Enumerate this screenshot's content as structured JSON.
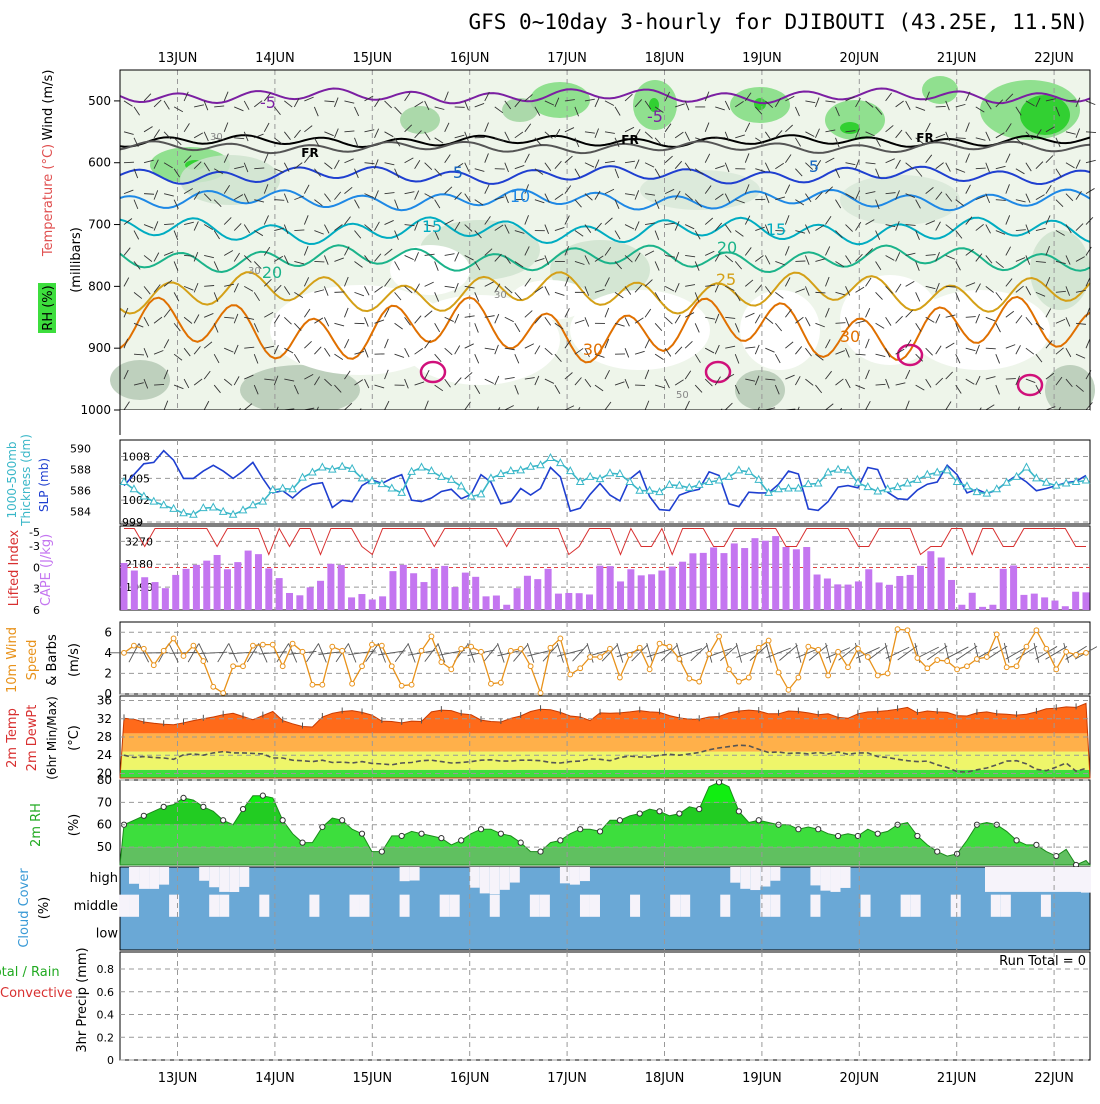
{
  "title": "GFS 0~10day 3-hourly for DJIBOUTI (43.25E, 11.5N)",
  "dates": [
    "13JUN",
    "14JUN",
    "15JUN",
    "16JUN",
    "17JUN",
    "18JUN",
    "19JUN",
    "20JUN",
    "21JUN",
    "22JUN"
  ],
  "chart_data": [
    {
      "type": "heatmap",
      "name": "upper-air",
      "ylabel_parts": [
        "Wind (m/s)",
        "Temperature (°C)",
        "RH (%)",
        "(millibars)"
      ],
      "yticks": [
        500,
        600,
        700,
        800,
        900,
        1000
      ],
      "ylim": [
        1000,
        450
      ],
      "colors": {
        "wind": "#000000",
        "temperature": "#e05050",
        "rh": "#22cc22"
      },
      "isotherm_labels": [
        {
          "text": "-5",
          "color": "#7b1fa2"
        },
        {
          "text": "-5",
          "color": "#7b1fa2"
        },
        {
          "text": "FR",
          "color": "#000000"
        },
        {
          "text": "FR",
          "color": "#000000"
        },
        {
          "text": "FR",
          "color": "#000000"
        },
        {
          "text": "5",
          "color": "#1565c0"
        },
        {
          "text": "5",
          "color": "#1565c0"
        },
        {
          "text": "10",
          "color": "#1e88e5"
        },
        {
          "text": "15",
          "color": "#00acc1"
        },
        {
          "text": "15",
          "color": "#00acc1"
        },
        {
          "text": "20",
          "color": "#1bb38a"
        },
        {
          "text": "20",
          "color": "#1bb38a"
        },
        {
          "text": "25",
          "color": "#d4a017"
        },
        {
          "text": "30",
          "color": "#e07000"
        },
        {
          "text": "30",
          "color": "#e07000"
        }
      ],
      "rh_labels": [
        "30",
        "30",
        "30",
        "50"
      ]
    },
    {
      "type": "line",
      "name": "slp-thickness",
      "ylabel_left": [
        "1000-500mb",
        "Thickness (dm)"
      ],
      "ylabel_right": "SLP (mb)",
      "yticks_left": [
        584,
        586,
        588,
        590
      ],
      "yticks_right": [
        999,
        1002,
        1005,
        1008
      ],
      "ylim_right": [
        999,
        1010
      ],
      "series": [
        {
          "name": "SLP (mb)",
          "color": "#1f3fd0",
          "values": [
            1004,
            1005.5,
            1007,
            1007.2,
            1008.8,
            1007.5,
            1005,
            1005,
            1006,
            1006.8,
            1006,
            1005,
            1006,
            1007.2,
            1005,
            1003,
            1003.3,
            1002.3,
            1003.5,
            1004.2,
            1004.4,
            1001,
            1002,
            1001.8,
            1004,
            1004.8,
            1004.3,
            1005,
            1005.5,
            1002,
            1001.8,
            1002.3,
            1003.2,
            1003.5,
            1002.2,
            1002.8,
            1005.5,
            1004.5,
            1001.5,
            1001.8,
            1003.6,
            1002.7,
            1003.6,
            1006.5,
            1005.2,
            1000.5,
            1000.9,
            1002.8,
            1004.3,
            1002.7,
            1001.9,
            1004.9,
            1006,
            1002.5,
            1000.7,
            1000.6,
            1002.7,
            1003.2,
            1003.5,
            1005.9,
            1005.4,
            1001.5,
            1001.1,
            1003.1,
            1003,
            1003,
            1004.2,
            1006,
            1005.6,
            1000.8,
            1000.6,
            1001.8,
            1003.8,
            1004,
            1003.7,
            1006.5,
            1006.2,
            1003.1,
            1002.2,
            1002.1,
            1003.4,
            1004.2,
            1004.5,
            1006.8,
            1005.5,
            1003,
            1003.5,
            1002.9,
            1003.4,
            1004.5,
            1005.4,
            1004.5,
            1003.3,
            1003.6,
            1004,
            1004.4,
            1004.6,
            1005.4
          ]
        },
        {
          "name": "1000-500mb Thickness (dm)",
          "color": "#3ab7c8",
          "marker": "triangle",
          "values": [
            1004.5,
            1003.5,
            1002.5,
            1001.8,
            1001.3,
            1000.8,
            1000.2,
            1000,
            1000.9,
            1001,
            1000.4,
            1000,
            1000.6,
            1001.3,
            1001.8,
            1003.4,
            1003.6,
            1003.5,
            1005.1,
            1005.8,
            1006.5,
            1006.2,
            1006.6,
            1006.3,
            1005,
            1004.6,
            1004.2,
            1003.6,
            1003,
            1005.9,
            1006.5,
            1006,
            1005.2,
            1004.8,
            1003.9,
            1002.5,
            1002.8,
            1005,
            1005.6,
            1006,
            1006.1,
            1006.6,
            1006.8,
            1007.8,
            1007.1,
            1006,
            1004.5,
            1005.2,
            1004.9,
            1005.7,
            1005.6,
            1004.5,
            1003.3,
            1003.3,
            1003.1,
            1004.1,
            1004,
            1003.7,
            1004.1,
            1004.5,
            1004.7,
            1005.2,
            1006.1,
            1005.9,
            1004.8,
            1003,
            1003.5,
            1003.6,
            1003.6,
            1004.2,
            1004.3,
            1005.8,
            1006.2,
            1006.1,
            1004.4,
            1003.8,
            1003.2,
            1003.5,
            1003.8,
            1004.3,
            1004.8,
            1005.5,
            1005.8,
            1006.1,
            1004.5,
            1003.9,
            1003.1,
            1002.9,
            1003.5,
            1004.4,
            1005.2,
            1006.5,
            1005,
            1004.4,
            1004,
            1004.3,
            1004.5,
            1004.7
          ]
        }
      ]
    },
    {
      "type": "bar",
      "name": "cape-lifted-index",
      "ylabel_left": "Lifted Index",
      "ylabel_right": "CAPE (J/kg)",
      "yticks_left": [
        6,
        3,
        0,
        -3,
        -5
      ],
      "yticks_right": [
        1090,
        2180,
        3270
      ],
      "colors": {
        "cape": "#c476f0",
        "lifted_index": "#d83030"
      },
      "series": [
        {
          "name": "CAPE (J/kg)",
          "values": [
            2240,
            1880,
            1560,
            1330,
            1040,
            1670,
            1960,
            2150,
            2350,
            2620,
            1940,
            2280,
            2830,
            2660,
            1980,
            1520,
            810,
            700,
            1080,
            1390,
            2200,
            2140,
            600,
            760,
            500,
            650,
            1850,
            2150,
            1750,
            1330,
            1970,
            2100,
            1090,
            1780,
            1580,
            650,
            690,
            250,
            1040,
            1630,
            1470,
            1960,
            780,
            810,
            800,
            740,
            2110,
            2090,
            1360,
            1940,
            1650,
            1700,
            1880,
            2070,
            2300,
            2700,
            2720,
            2980,
            2710,
            3170,
            2950,
            3420,
            3300,
            3520,
            3000,
            2890,
            3000,
            1690,
            1500,
            1220,
            1210,
            1360,
            1940,
            1310,
            1200,
            1620,
            1670,
            2100,
            2800,
            2500,
            1430,
            250,
            820,
            150,
            250,
            1960,
            2120,
            720,
            780,
            600,
            450,
            180,
            870,
            840
          ]
        },
        {
          "name": "Lifted Index",
          "values": [
            -5.5,
            -5.5,
            -5.5,
            -5.5,
            -5.5,
            -5.5,
            -5.5,
            -5.5,
            -5.5,
            -5.5,
            -5.5,
            -5.5,
            -5.5,
            -5.5,
            -5.5,
            -5.5,
            -5.5,
            -5.5,
            -5.5,
            -5.5,
            -5.5,
            -5.5,
            -5.5,
            -5.5,
            -5.5,
            -5.5,
            -5.5,
            -5.5,
            -5.5,
            -5.5,
            -5.5,
            -5.5,
            -5.5,
            -5.5,
            -5.5,
            -5.5,
            -5.5,
            -5.5,
            -5.5,
            -5.5,
            -5.5,
            -5.5,
            -5.5,
            -5.5,
            -5.5,
            -5.5,
            -5.5,
            -5.5,
            -5.5,
            -5.5,
            -5.5,
            -5.5,
            -5.5,
            -5.5,
            -5.5,
            -5.5,
            -5.5,
            -5.5,
            -5.5,
            -5.5,
            -5.5,
            -5.5,
            -5.5,
            -5.5,
            -5.5,
            -5.5,
            -5.5,
            -5.5,
            -5.5,
            -5.5,
            -5.5,
            -5.5,
            -5.5,
            -5.5,
            -5.5,
            -5.5,
            -5.5,
            -5.5,
            -5.5,
            -5.5,
            -5.5,
            -5.5,
            -5.5,
            -5.5,
            -5.5,
            -5.5,
            -5.5,
            -5.5,
            -5.5,
            -5.5,
            -5.5,
            -5.5,
            -5.5,
            -5.5
          ]
        }
      ]
    },
    {
      "type": "line",
      "name": "10m-wind",
      "ylabel": [
        "10m Wind",
        "Speed",
        "& Barbs",
        "(m/s)"
      ],
      "yticks": [
        0,
        2,
        4,
        6
      ],
      "ylim": [
        0,
        7
      ],
      "series": [
        {
          "name": "10m Wind Speed",
          "color": "#e8921a",
          "values": [
            4,
            4.7,
            4.4,
            2.8,
            4.2,
            5.4,
            3.7,
            4.7,
            3.2,
            0.7,
            0.1,
            2.7,
            2.7,
            4.7,
            4.8,
            4.8,
            2.7,
            4.9,
            4.1,
            0.9,
            0.9,
            4.6,
            4.2,
            1,
            2.7,
            4.8,
            4.7,
            2.7,
            0.8,
            0.9,
            4.2,
            5.6,
            3.1,
            2.4,
            4.4,
            4.6,
            4.1,
            1,
            1.1,
            4.2,
            4.4,
            2.7,
            0.1,
            4.5,
            5.4,
            1.9,
            2.5,
            3.6,
            3.6,
            4.4,
            1.6,
            3.8,
            4.5,
            2.4,
            4.9,
            4.6,
            3.4,
            1.5,
            1.2,
            3.9,
            5.6,
            2.4,
            1.2,
            1.6,
            4.5,
            5.2,
            2.1,
            0.4,
            1.6,
            4.6,
            4.3,
            1.8,
            4.1,
            2.6,
            4.4,
            3.6,
            1.8,
            2,
            6.3,
            6.2,
            3.5,
            2.5,
            3.3,
            3.2,
            2.4,
            2.7,
            3.4,
            3.6,
            5.8,
            2.6,
            2.7,
            4.6,
            6.2,
            4.4,
            2.4,
            4.1,
            3.8,
            4
          ]
        }
      ]
    },
    {
      "type": "area",
      "name": "2m-temp",
      "ylabel": [
        "2m Temp",
        "2m DewPt",
        "(6hr Min/Max)",
        "(°C)"
      ],
      "yticks": [
        20,
        24,
        28,
        32,
        36
      ],
      "ylim": [
        19,
        37
      ],
      "series": [
        {
          "name": "2m Temp",
          "color": "#e8561a",
          "values": [
            32.1,
            31.9,
            31.3,
            31,
            30.8,
            30.7,
            31.1,
            31.6,
            32,
            32.4,
            32.9,
            33.2,
            32.5,
            31.8,
            32.7,
            33.6,
            31.6,
            30.9,
            30.3,
            30.2,
            32.4,
            33.2,
            33.6,
            33.8,
            33.4,
            32.8,
            31.5,
            31.4,
            31.1,
            31.5,
            31.4,
            33.5,
            33.9,
            33.8,
            33.1,
            32.9,
            31.7,
            31.4,
            31.3,
            32.1,
            32.6,
            33.6,
            34.1,
            34,
            33.4,
            32.6,
            32.4,
            31.6,
            33.3,
            33.2,
            33.3,
            33.5,
            33.8,
            33.5,
            33.4,
            32.7,
            32.2,
            31.9,
            31.9,
            32.4,
            32.5,
            33.3,
            33.7,
            33.9,
            33.7,
            33.1,
            33.1,
            33.7,
            33.6,
            33.3,
            32.9,
            33.1,
            32.3,
            32.1,
            33.1,
            33.5,
            33.6,
            33.8,
            34.1,
            34.5,
            33.3,
            33.7,
            33.5,
            33.4,
            32.7,
            32.6,
            33.3,
            33.5,
            33.1,
            33,
            32.8,
            33,
            33.5,
            34.2,
            34.3,
            34.6,
            34.5,
            35.4
          ]
        },
        {
          "name": "2m DewPt",
          "color": "#666666",
          "values": [
            24,
            23.5,
            23.7,
            23.5,
            23.4,
            23.1,
            24.1,
            24.3,
            24,
            24.5,
            24.8,
            24.5,
            24.5,
            24.4,
            24.3,
            23.4,
            23.4,
            22.9,
            22.8,
            22.6,
            22.9,
            22.4,
            22.5,
            22.3,
            22.6,
            22.2,
            22.1,
            21.9,
            22.3,
            22.4,
            22.8,
            22.9,
            22.6,
            22.3,
            22.4,
            22.6,
            22.9,
            23,
            22.7,
            22.7,
            22.9,
            22.9,
            22.8,
            22.4,
            22.3,
            22.6,
            22.7,
            23.2,
            23.1,
            22.8,
            23.5,
            23.8,
            23.6,
            23.6,
            24,
            24.2,
            24,
            24.3,
            24.6,
            25.2,
            25.6,
            25.9,
            26.2,
            26.1,
            25.3,
            24.6,
            24.7,
            24.4,
            24.5,
            24.3,
            24.6,
            24.3,
            24.7,
            24.2,
            24.5,
            24.5,
            23.7,
            23.5,
            23.1,
            22.8,
            22.6,
            22.7,
            21.9,
            21.3,
            20.4,
            20.3,
            20.8,
            21.2,
            21.9,
            22.7,
            22.8,
            22.1,
            20.9,
            20.6,
            21.4,
            22.3,
            20.5,
            21.1
          ]
        }
      ],
      "bands": [
        {
          "from": 19,
          "to": 20.8,
          "color": "#3dde3d"
        },
        {
          "from": 20.8,
          "to": 24.8,
          "color": "#eef66a"
        },
        {
          "from": 24.8,
          "to": 28.8,
          "color": "#ffb04a"
        },
        {
          "from": 28.8,
          "to": 37,
          "color": "#ff6a1a"
        }
      ]
    },
    {
      "type": "area",
      "name": "2m-rh",
      "ylabel": [
        "2m RH",
        "(%)"
      ],
      "yticks": [
        50,
        60,
        70,
        80
      ],
      "ylim": [
        42,
        80
      ],
      "series": [
        {
          "name": "2m RH",
          "color": "#22cc22",
          "values": [
            60,
            62,
            64,
            66,
            68,
            69,
            72,
            71,
            68,
            66,
            62,
            60,
            67,
            73,
            73,
            72,
            62,
            56,
            52,
            52,
            59,
            63,
            62,
            58,
            56,
            48,
            48,
            55,
            55,
            57,
            56,
            55,
            54,
            51,
            53,
            56,
            58,
            58,
            56,
            55,
            52,
            48,
            48,
            52,
            53,
            56,
            58,
            58,
            57,
            62,
            62,
            64,
            65,
            67,
            66,
            64,
            65,
            68,
            67,
            77,
            79,
            77,
            66,
            61,
            62,
            61,
            60,
            60,
            58,
            59,
            58,
            56,
            55,
            56,
            55,
            58,
            56,
            57,
            60,
            61,
            55,
            51,
            48,
            46,
            47,
            53,
            60,
            61,
            60,
            57,
            53,
            51,
            51,
            48,
            46,
            49,
            42,
            44
          ]
        }
      ]
    },
    {
      "type": "bar",
      "name": "cloud-cover",
      "ylabel": [
        "Cloud Cover",
        "(%)"
      ],
      "level_labels": [
        "high",
        "middle",
        "low"
      ],
      "colors": {
        "cloud": "#6aa8d6",
        "clear": "#f6f3fa"
      }
    },
    {
      "type": "bar",
      "name": "precip",
      "ylabel": [
        "Total / Rain",
        "Convective",
        "3hr Precip (mm)"
      ],
      "ylabel_colors": [
        "#22aa22",
        "#d83030",
        "#000000"
      ],
      "yticks": [
        0,
        0.2,
        0.4,
        0.6,
        0.8
      ],
      "ylim": [
        0,
        0.95
      ],
      "annotation": "Run Total = 0",
      "values": []
    }
  ]
}
